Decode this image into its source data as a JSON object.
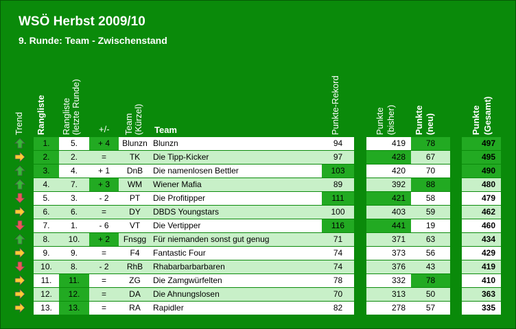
{
  "title": "WSÖ Herbst 2009/10",
  "subtitle": "9. Runde: Team - Zwischenstand",
  "headers": {
    "trend": "Trend",
    "rangliste": "Rangliste",
    "rangliste_letzte": "Rangliste",
    "rangliste_letzte2": "(letzte Runde)",
    "plusminus": "+/-",
    "team_kuerzel": "Team",
    "team_kuerzel2": "(Kürzel)",
    "team": "Team",
    "rekord": "Punkte-Rekord",
    "bisher": "Punkte",
    "bisher2": "(bisher)",
    "neu": "Punkte",
    "neu2": "(neu)",
    "gesamt": "Punkte",
    "gesamt2": "(Gesamt)"
  },
  "colors": {
    "background": "#0a8a0a",
    "light_row": "#c8f0c8",
    "highlight": "#22aa22",
    "arrow_up": "#33bb33",
    "arrow_right": "#ffcc33",
    "arrow_down": "#ee5555"
  },
  "rows": [
    {
      "trend": "up",
      "rank": "1.",
      "last": "5.",
      "pm": "+ 4",
      "abbr": "Blunzn",
      "team": "Blunzn",
      "rekord": "94",
      "bisher": "419",
      "neu": "78",
      "gesamt": "497",
      "hl": {
        "rank": true,
        "pm": true,
        "bisher": false,
        "neu": true,
        "gesamt": true,
        "last": false,
        "rekord": false
      }
    },
    {
      "trend": "right",
      "rank": "2.",
      "last": "2.",
      "pm": "=",
      "abbr": "TK",
      "team": "Die Tipp-Kicker",
      "rekord": "97",
      "bisher": "428",
      "neu": "67",
      "gesamt": "495",
      "hl": {
        "rank": true,
        "pm": false,
        "bisher": true,
        "neu": false,
        "gesamt": true,
        "last": false,
        "rekord": false
      }
    },
    {
      "trend": "up",
      "rank": "3.",
      "last": "4.",
      "pm": "+ 1",
      "abbr": "DnB",
      "team": "Die namenlosen Bettler",
      "rekord": "103",
      "bisher": "420",
      "neu": "70",
      "gesamt": "490",
      "hl": {
        "rank": true,
        "pm": false,
        "bisher": false,
        "neu": false,
        "gesamt": true,
        "last": false,
        "rekord": true
      }
    },
    {
      "trend": "up",
      "rank": "4.",
      "last": "7.",
      "pm": "+ 3",
      "abbr": "WM",
      "team": "Wiener Mafia",
      "rekord": "89",
      "bisher": "392",
      "neu": "88",
      "gesamt": "480",
      "hl": {
        "rank": false,
        "pm": true,
        "bisher": false,
        "neu": true,
        "gesamt": false,
        "last": false,
        "rekord": false
      }
    },
    {
      "trend": "down",
      "rank": "5.",
      "last": "3.",
      "pm": "- 2",
      "abbr": "PT",
      "team": "Die Profitipper",
      "rekord": "111",
      "bisher": "421",
      "neu": "58",
      "gesamt": "479",
      "hl": {
        "rank": false,
        "pm": false,
        "bisher": true,
        "neu": false,
        "gesamt": false,
        "last": false,
        "rekord": true
      }
    },
    {
      "trend": "right",
      "rank": "6.",
      "last": "6.",
      "pm": "=",
      "abbr": "DY",
      "team": "DBDS Youngstars",
      "rekord": "100",
      "bisher": "403",
      "neu": "59",
      "gesamt": "462",
      "hl": {
        "rank": false,
        "pm": false,
        "bisher": false,
        "neu": false,
        "gesamt": false,
        "last": false,
        "rekord": false
      }
    },
    {
      "trend": "down",
      "rank": "7.",
      "last": "1.",
      "pm": "- 6",
      "abbr": "VT",
      "team": "Die Vertipper",
      "rekord": "116",
      "bisher": "441",
      "neu": "19",
      "gesamt": "460",
      "hl": {
        "rank": false,
        "pm": false,
        "bisher": true,
        "neu": false,
        "gesamt": false,
        "last": false,
        "rekord": true
      }
    },
    {
      "trend": "up",
      "rank": "8.",
      "last": "10.",
      "pm": "+ 2",
      "abbr": "Fnsgg",
      "team": "Für niemanden sonst gut genug",
      "rekord": "71",
      "bisher": "371",
      "neu": "63",
      "gesamt": "434",
      "hl": {
        "rank": false,
        "pm": true,
        "bisher": false,
        "neu": false,
        "gesamt": false,
        "last": false,
        "rekord": false
      }
    },
    {
      "trend": "right",
      "rank": "9.",
      "last": "9.",
      "pm": "=",
      "abbr": "F4",
      "team": "Fantastic Four",
      "rekord": "74",
      "bisher": "373",
      "neu": "56",
      "gesamt": "429",
      "hl": {
        "rank": false,
        "pm": false,
        "bisher": false,
        "neu": false,
        "gesamt": false,
        "last": false,
        "rekord": false
      }
    },
    {
      "trend": "down",
      "rank": "10.",
      "last": "8.",
      "pm": "- 2",
      "abbr": "RhB",
      "team": "Rhabarbarbarbaren",
      "rekord": "74",
      "bisher": "376",
      "neu": "43",
      "gesamt": "419",
      "hl": {
        "rank": false,
        "pm": false,
        "bisher": false,
        "neu": false,
        "gesamt": false,
        "last": false,
        "rekord": false
      }
    },
    {
      "trend": "right",
      "rank": "11.",
      "last": "11.",
      "pm": "=",
      "abbr": "ZG",
      "team": "Die Zamgwürfelten",
      "rekord": "78",
      "bisher": "332",
      "neu": "78",
      "gesamt": "410",
      "hl": {
        "rank": false,
        "pm": false,
        "bisher": false,
        "neu": true,
        "gesamt": false,
        "last": true,
        "rekord": false
      }
    },
    {
      "trend": "right",
      "rank": "12.",
      "last": "12.",
      "pm": "=",
      "abbr": "DA",
      "team": "Die Ahnungslosen",
      "rekord": "70",
      "bisher": "313",
      "neu": "50",
      "gesamt": "363",
      "hl": {
        "rank": false,
        "pm": false,
        "bisher": false,
        "neu": false,
        "gesamt": false,
        "last": true,
        "rekord": false
      }
    },
    {
      "trend": "right",
      "rank": "13.",
      "last": "13.",
      "pm": "=",
      "abbr": "RA",
      "team": "Rapidler",
      "rekord": "82",
      "bisher": "278",
      "neu": "57",
      "gesamt": "335",
      "hl": {
        "rank": false,
        "pm": false,
        "bisher": false,
        "neu": false,
        "gesamt": false,
        "last": true,
        "rekord": false
      }
    }
  ]
}
